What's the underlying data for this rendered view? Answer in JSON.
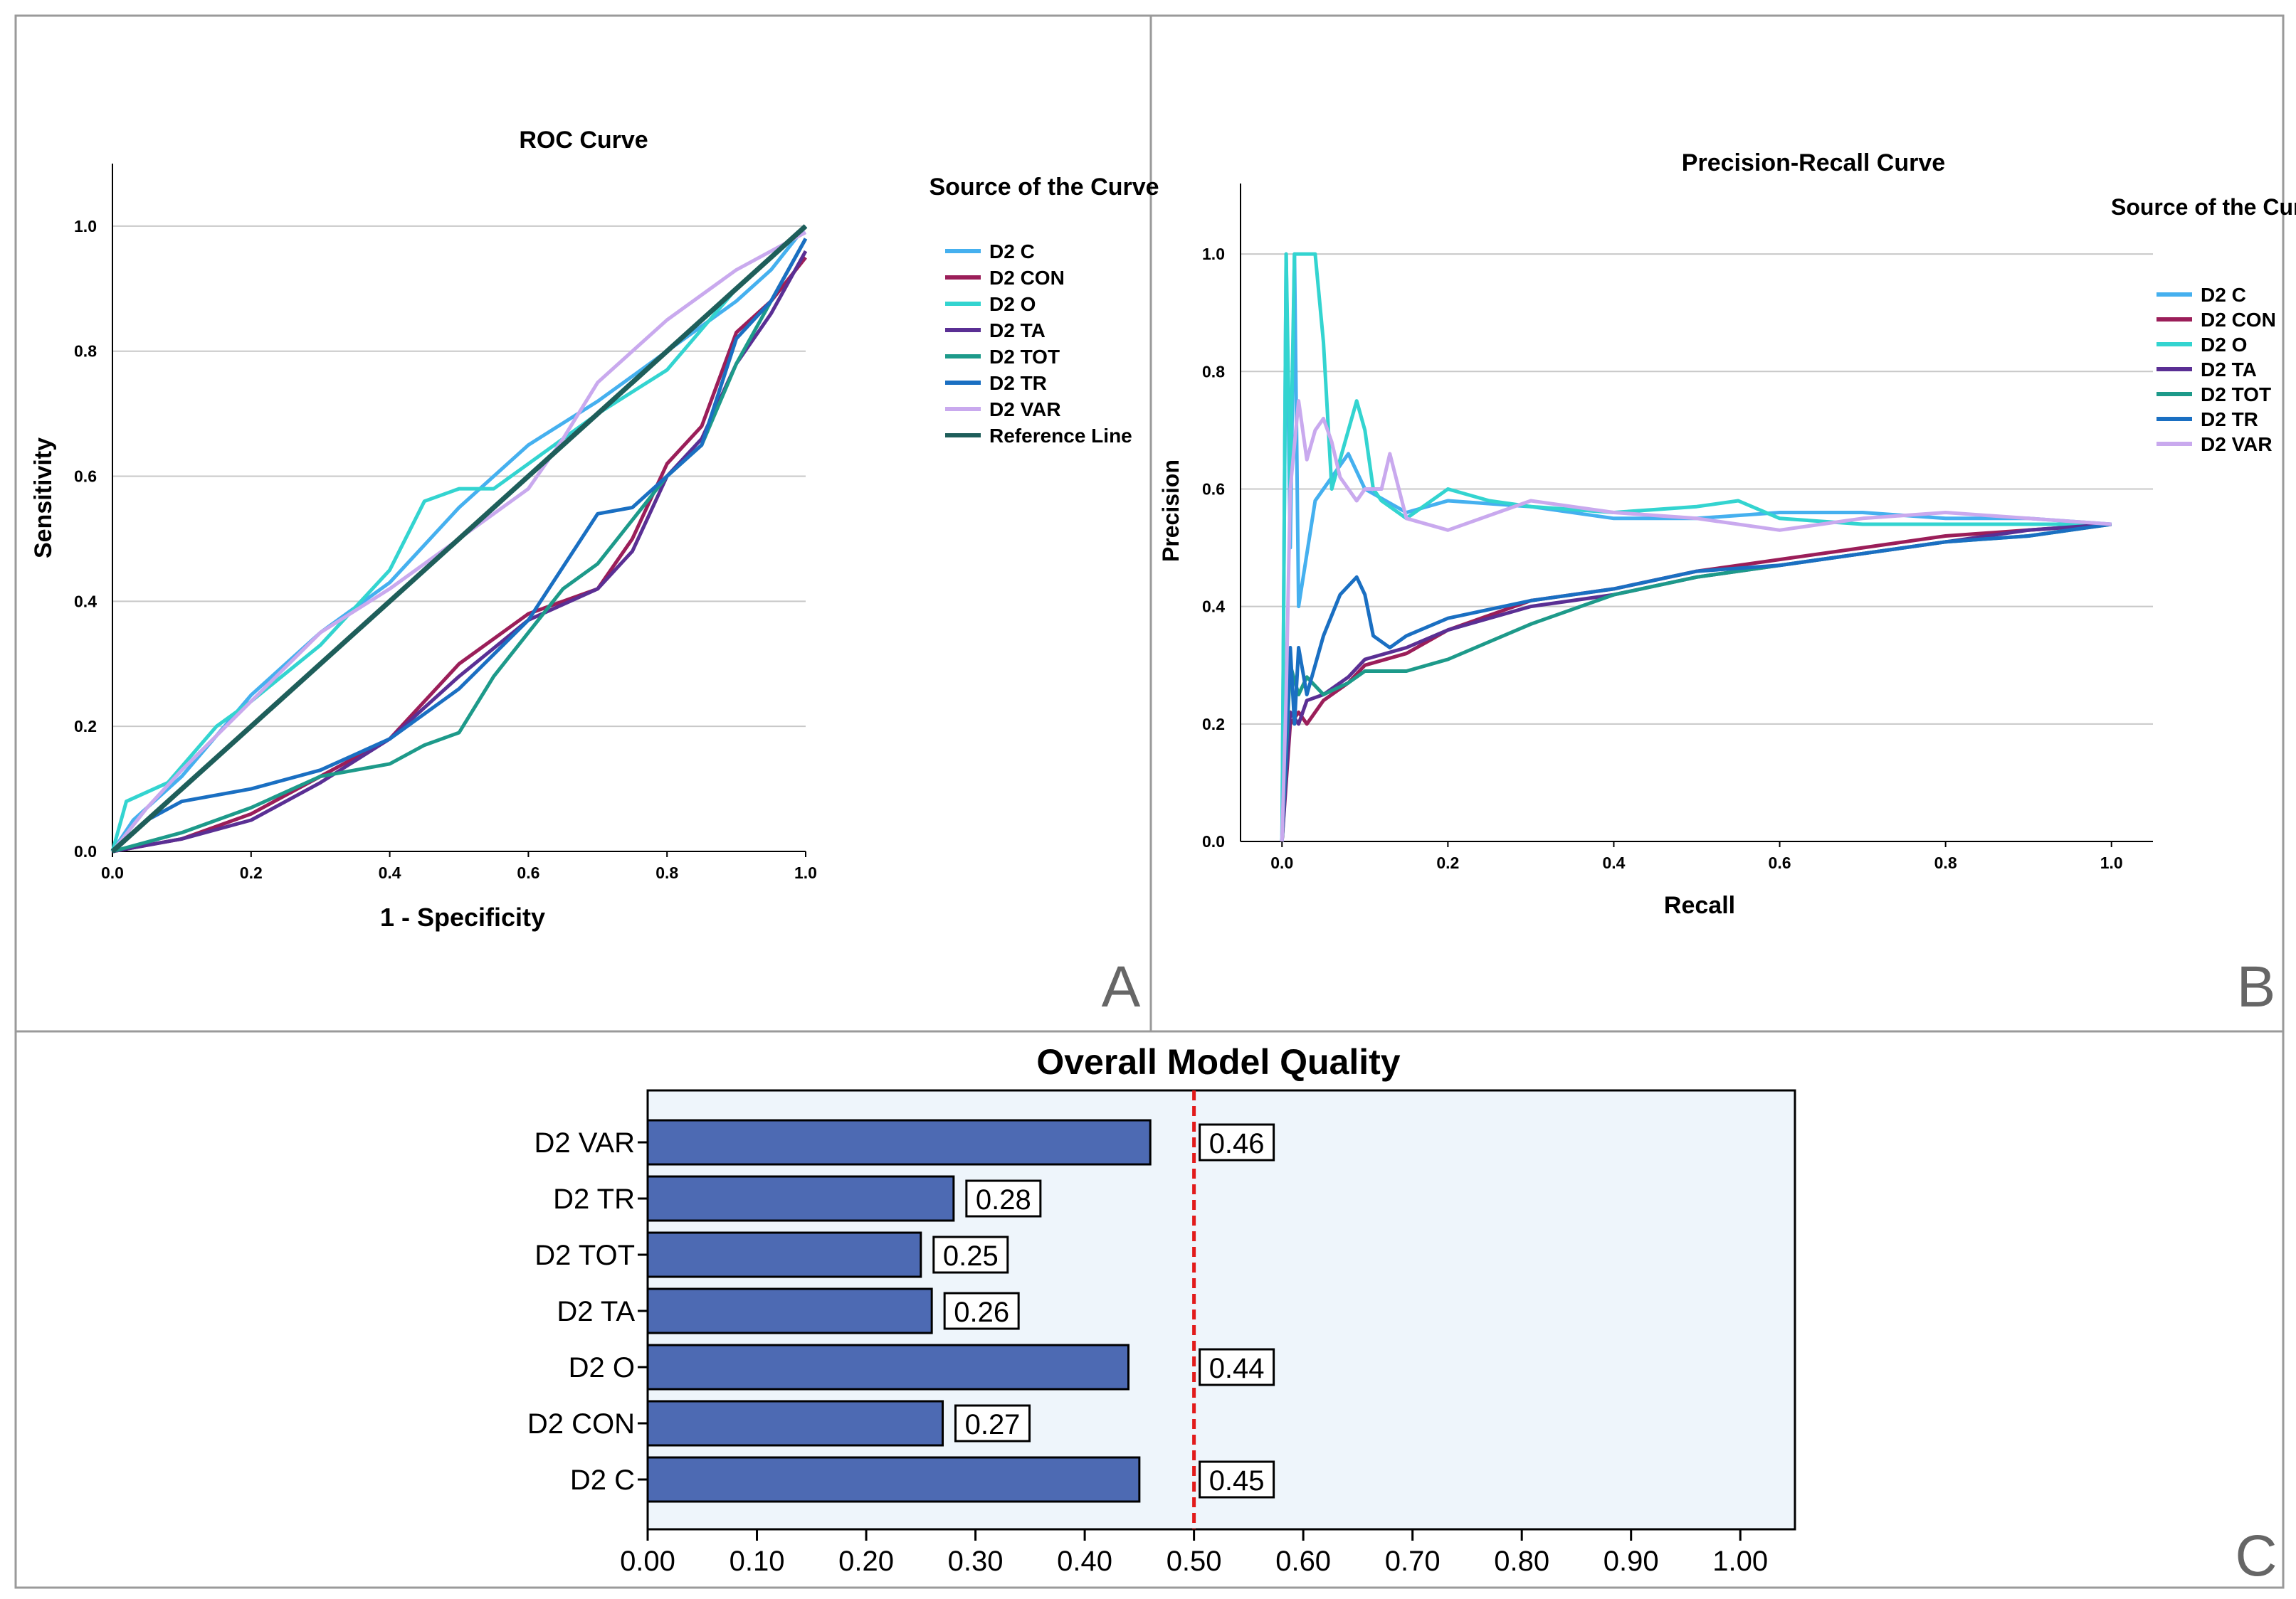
{
  "panels": {
    "a": "A",
    "b": "B",
    "c": "C"
  },
  "colors": {
    "D2  C": "#45b0ef",
    "D2 CON": "#9b1e59",
    "D2 O": "#33d4d0",
    "D2 TA": "#5a2f94",
    "D2 TOT": "#1d9a8a",
    "D2 TR": "#1a6fc2",
    "D2 VAR": "#c9a9ee",
    "Reference Line": "#1e5e5a",
    "bar": "#4d6ab3",
    "threshold": "#e21a1a"
  },
  "chart_data": [
    {
      "type": "line",
      "title": "ROC Curve",
      "xlabel": "1 - Specificity",
      "ylabel": "Sensitivity",
      "xlim": [
        0,
        1
      ],
      "ylim": [
        0,
        1.1
      ],
      "xticks": [
        "0.0",
        "0.2",
        "0.4",
        "0.6",
        "0.8",
        "1.0"
      ],
      "yticks": [
        "0.0",
        "0.2",
        "0.4",
        "0.6",
        "0.8",
        "1.0"
      ],
      "grid": "horizontal",
      "legend_title": "Source of the Curve",
      "legend": [
        "D2  C",
        "D2 CON",
        "D2 O",
        "D2 TA",
        "D2 TOT",
        "D2 TR",
        "D2 VAR",
        "Reference Line"
      ],
      "series": [
        {
          "name": "D2  C",
          "x": [
            0,
            0.03,
            0.1,
            0.2,
            0.3,
            0.4,
            0.5,
            0.6,
            0.7,
            0.8,
            0.9,
            0.95,
            1.0
          ],
          "y": [
            0,
            0.05,
            0.12,
            0.25,
            0.35,
            0.43,
            0.55,
            0.65,
            0.72,
            0.8,
            0.88,
            0.93,
            1.0
          ]
        },
        {
          "name": "D2 CON",
          "x": [
            0,
            0.1,
            0.2,
            0.3,
            0.4,
            0.5,
            0.6,
            0.7,
            0.75,
            0.8,
            0.85,
            0.9,
            0.95,
            1.0
          ],
          "y": [
            0,
            0.02,
            0.06,
            0.12,
            0.18,
            0.3,
            0.38,
            0.42,
            0.5,
            0.62,
            0.68,
            0.83,
            0.88,
            0.95
          ]
        },
        {
          "name": "D2 O",
          "x": [
            0,
            0.02,
            0.08,
            0.15,
            0.2,
            0.3,
            0.4,
            0.45,
            0.5,
            0.55,
            0.6,
            0.7,
            0.8,
            0.9,
            1.0
          ],
          "y": [
            0,
            0.08,
            0.11,
            0.2,
            0.24,
            0.33,
            0.45,
            0.56,
            0.58,
            0.58,
            0.62,
            0.7,
            0.77,
            0.9,
            1.0
          ]
        },
        {
          "name": "D2 TA",
          "x": [
            0,
            0.1,
            0.2,
            0.3,
            0.4,
            0.5,
            0.6,
            0.7,
            0.75,
            0.8,
            0.85,
            0.9,
            0.95,
            1.0
          ],
          "y": [
            0,
            0.02,
            0.05,
            0.11,
            0.18,
            0.28,
            0.37,
            0.42,
            0.48,
            0.6,
            0.66,
            0.78,
            0.86,
            0.96
          ]
        },
        {
          "name": "D2 TOT",
          "x": [
            0,
            0.1,
            0.2,
            0.3,
            0.4,
            0.45,
            0.5,
            0.55,
            0.6,
            0.65,
            0.7,
            0.8,
            0.85,
            0.9,
            0.95,
            1.0
          ],
          "y": [
            0,
            0.03,
            0.07,
            0.12,
            0.14,
            0.17,
            0.19,
            0.28,
            0.35,
            0.42,
            0.46,
            0.6,
            0.65,
            0.78,
            0.88,
            0.98
          ]
        },
        {
          "name": "D2 TR",
          "x": [
            0,
            0.05,
            0.1,
            0.2,
            0.3,
            0.4,
            0.5,
            0.6,
            0.7,
            0.75,
            0.8,
            0.85,
            0.9,
            0.95,
            1.0
          ],
          "y": [
            0,
            0.05,
            0.08,
            0.1,
            0.13,
            0.18,
            0.26,
            0.37,
            0.54,
            0.55,
            0.6,
            0.65,
            0.82,
            0.88,
            0.98
          ]
        },
        {
          "name": "D2 VAR",
          "x": [
            0,
            0.05,
            0.1,
            0.2,
            0.3,
            0.4,
            0.5,
            0.6,
            0.65,
            0.7,
            0.8,
            0.9,
            1.0
          ],
          "y": [
            0,
            0.07,
            0.13,
            0.24,
            0.35,
            0.42,
            0.5,
            0.58,
            0.66,
            0.75,
            0.85,
            0.93,
            0.99
          ]
        },
        {
          "name": "Reference Line",
          "x": [
            0,
            1
          ],
          "y": [
            0,
            1
          ]
        }
      ]
    },
    {
      "type": "line",
      "title": "Precision-Recall Curve",
      "xlabel": "Recall",
      "ylabel": "Precision",
      "xlim": [
        -0.05,
        1.05
      ],
      "ylim": [
        0,
        1.12
      ],
      "xticks": [
        "0.0",
        "0.2",
        "0.4",
        "0.6",
        "0.8",
        "1.0"
      ],
      "yticks": [
        "0.0",
        "0.2",
        "0.4",
        "0.6",
        "0.8",
        "1.0"
      ],
      "grid": "horizontal",
      "legend_title": "Source of the Curve",
      "legend": [
        "D2  C",
        "D2 CON",
        "D2 O",
        "D2 TA",
        "D2 TOT",
        "D2 TR",
        "D2 VAR"
      ],
      "series": [
        {
          "name": "D2  C",
          "x": [
            0,
            0.005,
            0.01,
            0.015,
            0.02,
            0.04,
            0.06,
            0.08,
            0.1,
            0.15,
            0.2,
            0.3,
            0.4,
            0.5,
            0.6,
            0.7,
            0.8,
            0.9,
            1.0
          ],
          "y": [
            0,
            1.0,
            0.5,
            1.0,
            0.4,
            0.58,
            0.62,
            0.66,
            0.6,
            0.56,
            0.58,
            0.57,
            0.55,
            0.55,
            0.56,
            0.56,
            0.55,
            0.55,
            0.54
          ]
        },
        {
          "name": "D2 CON",
          "x": [
            0,
            0.01,
            0.02,
            0.03,
            0.05,
            0.08,
            0.1,
            0.15,
            0.2,
            0.3,
            0.4,
            0.5,
            0.6,
            0.7,
            0.8,
            0.9,
            1.0
          ],
          "y": [
            0,
            0.2,
            0.22,
            0.2,
            0.24,
            0.27,
            0.3,
            0.32,
            0.36,
            0.41,
            0.43,
            0.46,
            0.48,
            0.5,
            0.52,
            0.53,
            0.54
          ]
        },
        {
          "name": "D2 O",
          "x": [
            0,
            0.005,
            0.01,
            0.015,
            0.02,
            0.03,
            0.04,
            0.05,
            0.06,
            0.08,
            0.09,
            0.1,
            0.11,
            0.12,
            0.15,
            0.2,
            0.25,
            0.3,
            0.4,
            0.5,
            0.55,
            0.6,
            0.7,
            0.8,
            0.9,
            1.0
          ],
          "y": [
            0,
            1.0,
            0.6,
            1.0,
            1.0,
            1.0,
            1.0,
            0.85,
            0.6,
            0.7,
            0.75,
            0.7,
            0.6,
            0.58,
            0.55,
            0.6,
            0.58,
            0.57,
            0.56,
            0.57,
            0.58,
            0.55,
            0.54,
            0.54,
            0.54,
            0.54
          ]
        },
        {
          "name": "D2 TA",
          "x": [
            0,
            0.01,
            0.02,
            0.03,
            0.05,
            0.08,
            0.1,
            0.15,
            0.2,
            0.3,
            0.4,
            0.5,
            0.6,
            0.7,
            0.8,
            0.9,
            1.0
          ],
          "y": [
            0,
            0.22,
            0.2,
            0.24,
            0.25,
            0.28,
            0.31,
            0.33,
            0.36,
            0.4,
            0.42,
            0.45,
            0.47,
            0.49,
            0.51,
            0.53,
            0.54
          ]
        },
        {
          "name": "D2 TOT",
          "x": [
            0,
            0.01,
            0.02,
            0.03,
            0.05,
            0.08,
            0.1,
            0.15,
            0.2,
            0.3,
            0.4,
            0.5,
            0.6,
            0.7,
            0.8,
            0.9,
            1.0
          ],
          "y": [
            0,
            0.3,
            0.25,
            0.28,
            0.25,
            0.27,
            0.29,
            0.29,
            0.31,
            0.37,
            0.42,
            0.45,
            0.47,
            0.49,
            0.51,
            0.52,
            0.54
          ]
        },
        {
          "name": "D2 TR",
          "x": [
            0,
            0.01,
            0.015,
            0.02,
            0.03,
            0.05,
            0.07,
            0.09,
            0.1,
            0.11,
            0.13,
            0.15,
            0.2,
            0.3,
            0.4,
            0.5,
            0.6,
            0.7,
            0.8,
            0.9,
            1.0
          ],
          "y": [
            0,
            0.33,
            0.2,
            0.33,
            0.25,
            0.35,
            0.42,
            0.45,
            0.42,
            0.35,
            0.33,
            0.35,
            0.38,
            0.41,
            0.43,
            0.46,
            0.47,
            0.49,
            0.51,
            0.52,
            0.54
          ]
        },
        {
          "name": "D2 VAR",
          "x": [
            0,
            0.005,
            0.01,
            0.02,
            0.03,
            0.04,
            0.05,
            0.06,
            0.07,
            0.09,
            0.1,
            0.12,
            0.13,
            0.15,
            0.2,
            0.3,
            0.4,
            0.5,
            0.6,
            0.7,
            0.8,
            0.9,
            1.0
          ],
          "y": [
            0,
            0.25,
            0.6,
            0.75,
            0.65,
            0.7,
            0.72,
            0.68,
            0.62,
            0.58,
            0.6,
            0.6,
            0.66,
            0.55,
            0.53,
            0.58,
            0.56,
            0.55,
            0.53,
            0.55,
            0.56,
            0.55,
            0.54
          ]
        }
      ]
    },
    {
      "type": "bar",
      "orientation": "horizontal",
      "title": "Overall Model Quality",
      "categories": [
        "D2 VAR",
        "D2 TR",
        "D2 TOT",
        "D2 TA",
        "D2 O",
        "D2 CON",
        "D2  C"
      ],
      "values": [
        0.46,
        0.28,
        0.25,
        0.26,
        0.44,
        0.27,
        0.45
      ],
      "value_labels": [
        "0.46",
        "0.28",
        "0.25",
        "0.26",
        "0.44",
        "0.27",
        "0.45"
      ],
      "xlim": [
        0,
        1.05
      ],
      "xticks": [
        "0.00",
        "0.10",
        "0.20",
        "0.30",
        "0.40",
        "0.50",
        "0.60",
        "0.70",
        "0.80",
        "0.90",
        "1.00"
      ],
      "threshold": 0.5
    }
  ]
}
